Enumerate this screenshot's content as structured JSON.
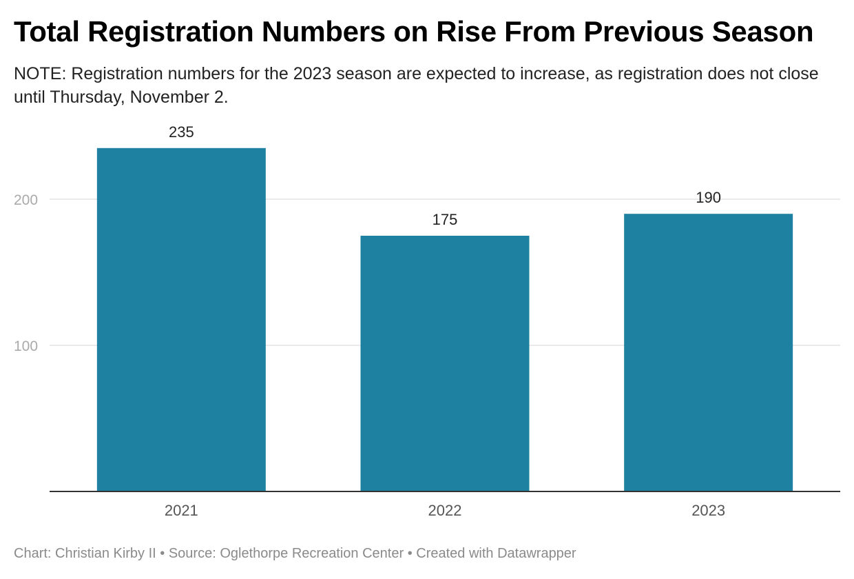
{
  "header": {
    "title": "Total Registration Numbers on Rise From Previous Season",
    "subtitle": "NOTE: Registration numbers for the 2023 season are expected to increase, as registration does not close until Thursday, November 2."
  },
  "footer": {
    "credit": "Chart: Christian Kirby II • Source: Oglethorpe Recreation Center • Created with Datawrapper"
  },
  "chart_data": {
    "type": "bar",
    "title": "Total Registration Numbers on Rise From Previous Season",
    "subtitle": "NOTE: Registration numbers for the 2023 season are expected to increase, as registration does not close until Thursday, November 2.",
    "categories": [
      "2021",
      "2022",
      "2023"
    ],
    "values": [
      235,
      175,
      190
    ],
    "value_labels": [
      "235",
      "175",
      "190"
    ],
    "xlabel": "",
    "ylabel": "",
    "ylim": [
      0,
      235
    ],
    "yticks": [
      100,
      200
    ],
    "ytick_labels": [
      "100",
      "200"
    ],
    "grid": true,
    "legend": "none",
    "colors": {
      "bar": "#1f81a2",
      "grid": "#e3e3e3",
      "axis": "#333333",
      "tick_text": "#aaaaaa",
      "category_text": "#555555",
      "value_text": "#222222"
    }
  }
}
